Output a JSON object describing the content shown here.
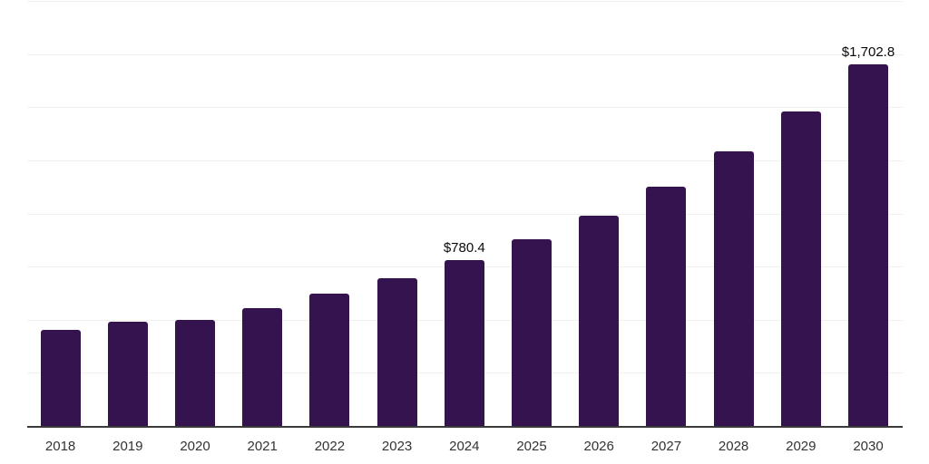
{
  "chart_data": {
    "type": "bar",
    "title": "",
    "xlabel": "",
    "ylabel": "",
    "categories": [
      "2018",
      "2019",
      "2020",
      "2021",
      "2022",
      "2023",
      "2024",
      "2025",
      "2026",
      "2027",
      "2028",
      "2029",
      "2030"
    ],
    "values": [
      452,
      492,
      499,
      556,
      621,
      695,
      780.4,
      880,
      991,
      1124,
      1294,
      1480,
      1702.8
    ],
    "data_labels": [
      "",
      "",
      "",
      "",
      "",
      "",
      "$780.4",
      "",
      "",
      "",
      "",
      "",
      "$1,702.8"
    ],
    "ylim": [
      0,
      2000
    ],
    "gridline_step": 250,
    "grid": "horizontal",
    "legend": "none",
    "y_axis_labels_visible": false,
    "colors": {
      "bar": "#34134E",
      "axis_line": "#3a3a3a",
      "gridline": "#f0f0f0",
      "tick_label": "#333333",
      "value_label": "#0a0a0a",
      "background": "#ffffff"
    }
  }
}
